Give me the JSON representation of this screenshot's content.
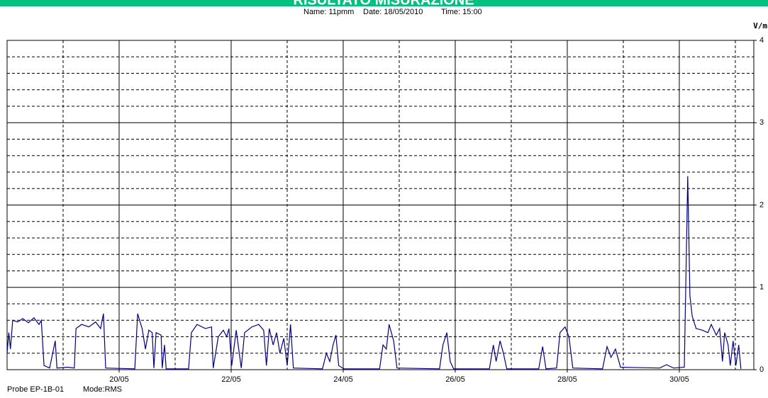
{
  "chart_data": {
    "type": "line",
    "title": "RISULTATO MISURAZIONE",
    "info": [
      "Name: 11pmm",
      "Date: 18/05/2010",
      "Time: 15:00"
    ],
    "y_label": "V/m",
    "footer": [
      "Probe EP-1B-01",
      "Mode:RMS"
    ],
    "grid": true,
    "xlim": [
      18,
      31.33
    ],
    "ylim": [
      0,
      4
    ],
    "yticks": [
      0,
      1,
      2,
      3,
      4
    ],
    "xticks": [
      {
        "value": 20,
        "label": "20/05"
      },
      {
        "value": 22,
        "label": "22/05"
      },
      {
        "value": 24,
        "label": "24/05"
      },
      {
        "value": 26,
        "label": "26/05"
      },
      {
        "value": 28,
        "label": "28/05"
      },
      {
        "value": 30,
        "label": "30/05"
      }
    ],
    "series": [
      {
        "color": "#000080",
        "x": [
          18.0,
          18.03,
          18.06,
          18.1,
          18.19,
          18.28,
          18.38,
          18.48,
          18.57,
          18.61,
          18.66,
          18.76,
          18.86,
          18.89,
          19.08,
          19.2,
          19.23,
          19.33,
          19.46,
          19.58,
          19.67,
          19.72,
          19.76,
          20.28,
          20.33,
          20.41,
          20.47,
          20.53,
          20.59,
          20.62,
          20.66,
          20.75,
          20.77,
          20.81,
          20.84,
          21.24,
          21.29,
          21.39,
          21.54,
          21.65,
          21.68,
          21.77,
          21.86,
          21.92,
          21.96,
          22.01,
          22.09,
          22.18,
          22.24,
          22.37,
          22.49,
          22.58,
          22.63,
          22.68,
          22.75,
          22.81,
          22.87,
          22.94,
          23.0,
          23.06,
          23.11,
          23.63,
          23.7,
          23.76,
          23.82,
          23.87,
          23.92,
          24.01,
          24.65,
          24.71,
          24.77,
          24.82,
          24.9,
          24.96,
          25.72,
          25.78,
          25.85,
          25.91,
          25.97,
          26.61,
          26.68,
          26.73,
          26.8,
          26.86,
          26.92,
          27.49,
          27.56,
          27.62,
          27.81,
          27.87,
          27.96,
          28.03,
          28.1,
          28.63,
          28.71,
          28.78,
          28.86,
          28.95,
          29.65,
          29.77,
          29.9,
          30.09,
          30.15,
          30.19,
          30.23,
          30.3,
          30.41,
          30.51,
          30.57,
          30.66,
          30.72,
          30.77,
          30.81,
          30.87,
          30.91,
          30.96,
          31.01,
          31.06,
          31.1
        ],
        "values": [
          0.2,
          0.45,
          0.25,
          0.6,
          0.58,
          0.62,
          0.57,
          0.63,
          0.55,
          0.6,
          0.05,
          0.02,
          0.35,
          0.02,
          0.03,
          0.02,
          0.5,
          0.55,
          0.52,
          0.58,
          0.5,
          0.68,
          0.02,
          0.01,
          0.68,
          0.5,
          0.25,
          0.48,
          0.45,
          0.02,
          0.45,
          0.42,
          0.02,
          0.3,
          0.01,
          0.01,
          0.45,
          0.55,
          0.5,
          0.52,
          0.02,
          0.4,
          0.48,
          0.4,
          0.5,
          0.05,
          0.48,
          0.02,
          0.45,
          0.52,
          0.55,
          0.48,
          0.05,
          0.5,
          0.3,
          0.45,
          0.2,
          0.38,
          0.05,
          0.55,
          0.02,
          0.01,
          0.2,
          0.1,
          0.3,
          0.42,
          0.05,
          0.01,
          0.01,
          0.3,
          0.25,
          0.55,
          0.35,
          0.02,
          0.01,
          0.3,
          0.45,
          0.1,
          0.01,
          0.01,
          0.3,
          0.1,
          0.35,
          0.2,
          0.01,
          0.01,
          0.28,
          0.01,
          0.02,
          0.45,
          0.52,
          0.4,
          0.02,
          0.01,
          0.28,
          0.15,
          0.25,
          0.03,
          0.02,
          0.06,
          0.02,
          0.03,
          2.35,
          0.9,
          0.65,
          0.5,
          0.48,
          0.45,
          0.55,
          0.42,
          0.5,
          0.1,
          0.45,
          0.3,
          0.05,
          0.35,
          0.05,
          0.3,
          0.01
        ]
      }
    ]
  }
}
